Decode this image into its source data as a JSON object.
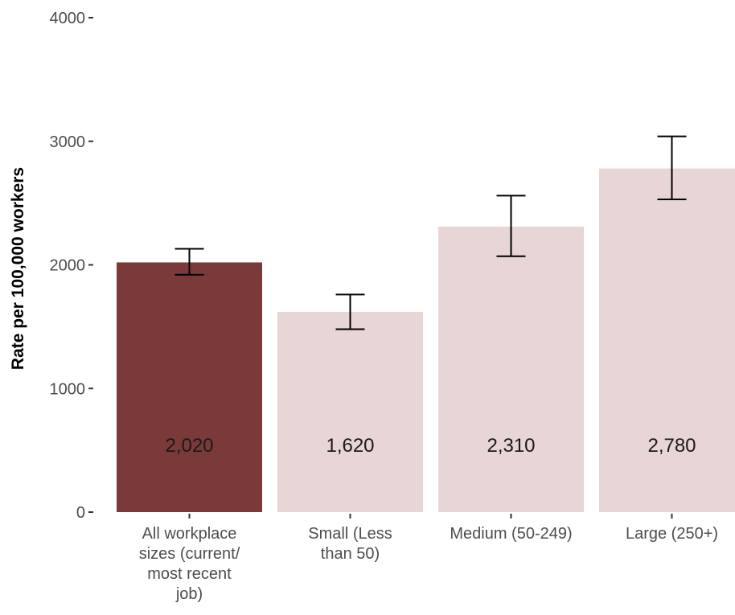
{
  "chart_data": {
    "type": "bar",
    "title": "",
    "xlabel": "",
    "ylabel": "Rate per 100,000 workers",
    "ylim": [
      0,
      4000
    ],
    "yticks": [
      0,
      1000,
      2000,
      3000,
      4000
    ],
    "categories": [
      [
        "All workplace",
        "sizes (current/",
        "most recent",
        "job)"
      ],
      [
        "Small (Less",
        "than 50)"
      ],
      [
        "Medium (50-249)"
      ],
      [
        "Large (250+)"
      ]
    ],
    "values": [
      2020,
      1620,
      2310,
      2780
    ],
    "value_labels": [
      "2,020",
      "1,620",
      "2,310",
      "2,780"
    ],
    "error_low": [
      1920,
      1480,
      2070,
      2530
    ],
    "error_high": [
      2130,
      1760,
      2560,
      3040
    ],
    "bar_colors": [
      "#7b3a3a",
      "#e8d5d6",
      "#e8d5d6",
      "#e8d5d6"
    ],
    "grid": false,
    "legend": "none"
  }
}
